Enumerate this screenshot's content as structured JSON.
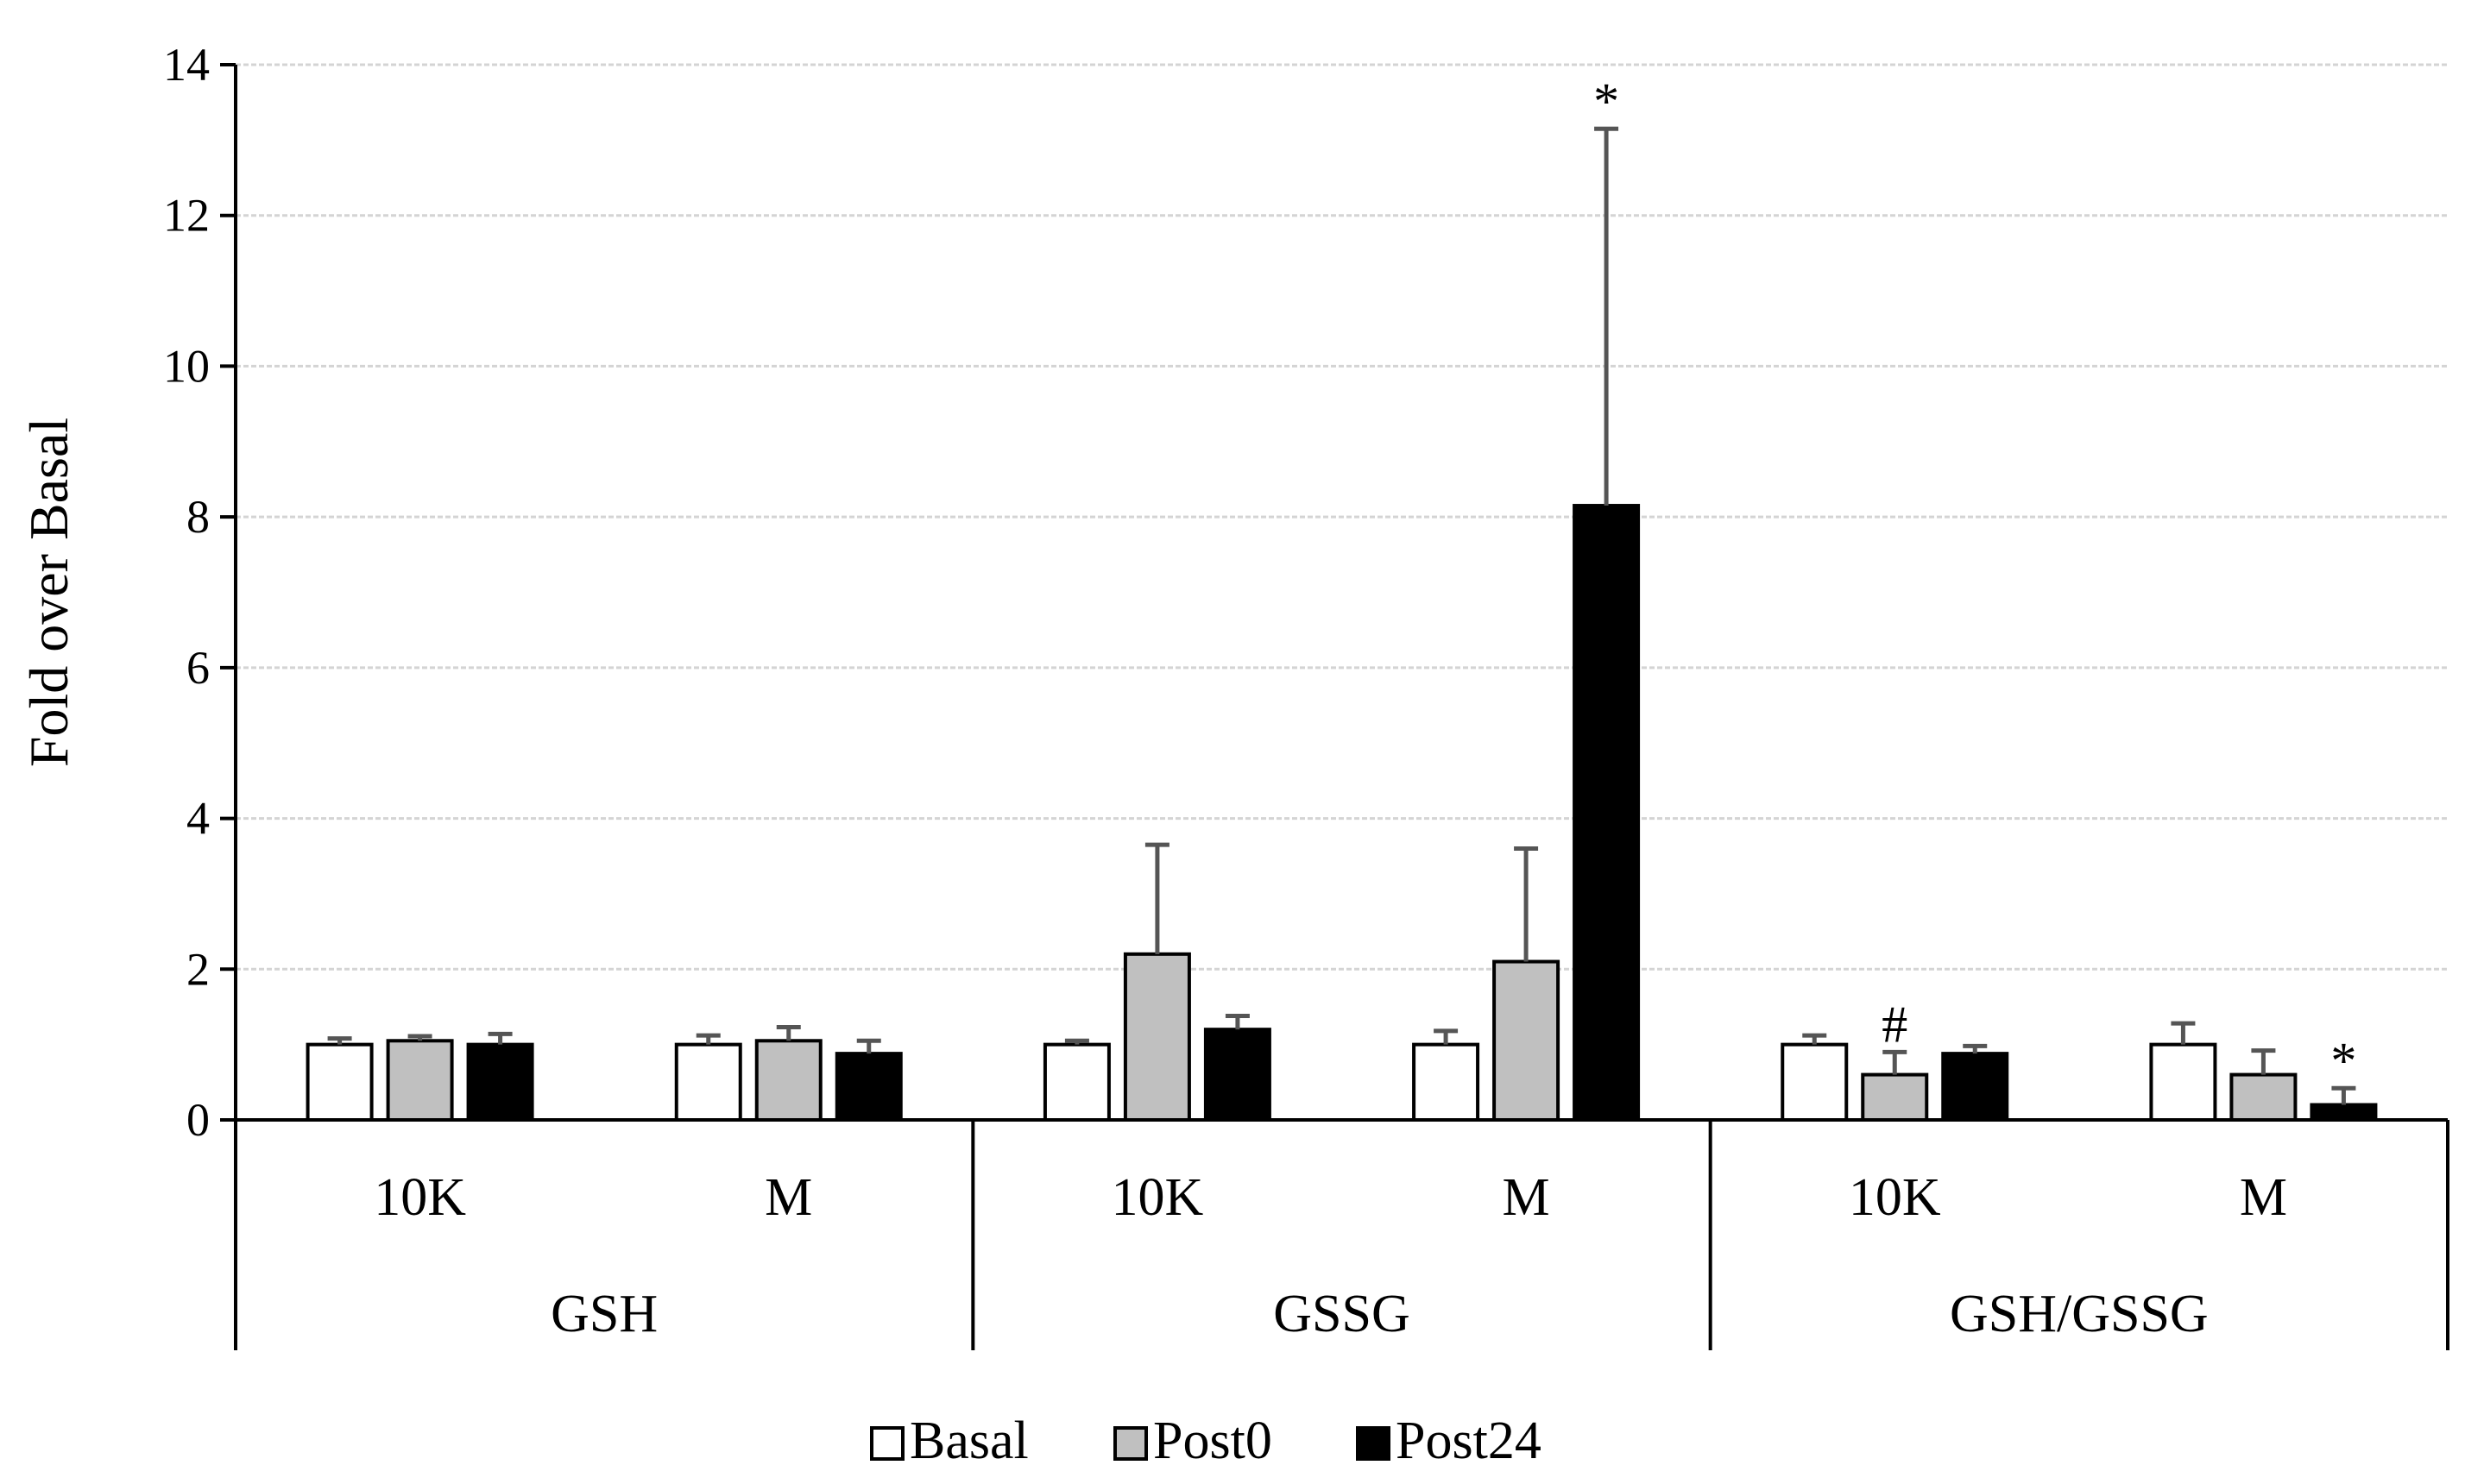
{
  "chart_data": {
    "type": "bar",
    "ylabel": "Fold over Basal",
    "ylim": [
      0,
      14
    ],
    "yticks": [
      0,
      2,
      4,
      6,
      8,
      10,
      12,
      14
    ],
    "grid": true,
    "legend_position": "bottom-center",
    "groups": [
      {
        "label": "GSH",
        "categories": [
          "10K",
          "M"
        ]
      },
      {
        "label": "GSSG",
        "categories": [
          "10K",
          "M"
        ]
      },
      {
        "label": "GSH/GSSG",
        "categories": [
          "10K",
          "M"
        ]
      }
    ],
    "series": [
      {
        "name": "Basal",
        "fill": "#ffffff",
        "values": [
          1.0,
          1.0,
          1.0,
          1.0,
          1.0,
          1.0
        ],
        "errors": [
          0.08,
          0.12,
          0.05,
          0.18,
          0.12,
          0.28
        ]
      },
      {
        "name": "Post0",
        "fill": "#c0c0c0",
        "values": [
          1.05,
          1.05,
          2.2,
          2.1,
          0.6,
          0.6
        ],
        "errors": [
          0.06,
          0.18,
          1.45,
          1.5,
          0.3,
          0.32
        ]
      },
      {
        "name": "Post24",
        "fill": "#000000",
        "values": [
          1.0,
          0.88,
          1.2,
          8.15,
          0.88,
          0.2
        ],
        "errors": [
          0.14,
          0.17,
          0.18,
          5.0,
          0.1,
          0.22
        ]
      }
    ],
    "annotations": [
      {
        "series": 2,
        "index": 3,
        "text": "*"
      },
      {
        "series": 1,
        "index": 4,
        "text": "#"
      },
      {
        "series": 2,
        "index": 5,
        "text": "*"
      }
    ]
  }
}
